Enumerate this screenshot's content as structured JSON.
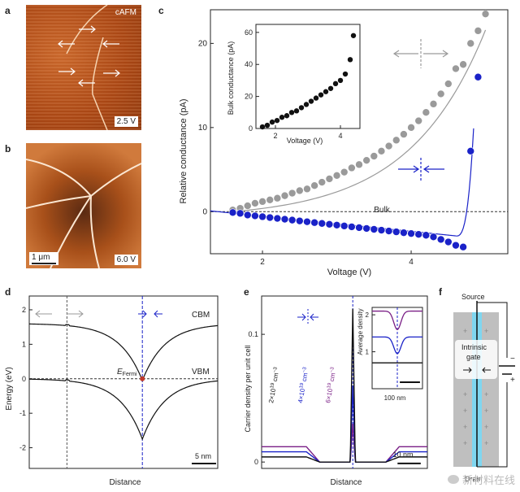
{
  "panels": {
    "a": {
      "label": "a",
      "mode": "cAFM",
      "bias": "2.5 V"
    },
    "b": {
      "label": "b",
      "scale": "1 μm",
      "bias": "6.0 V"
    },
    "c": {
      "label": "c",
      "inset": {
        "xlabel": "Voltage (V)",
        "ylabel": "Bulk conductance (pA)"
      },
      "main": {
        "xlabel": "Voltage (V)",
        "ylabel": "Relative conductance (pA)",
        "bulk_label": "Bulk"
      }
    },
    "d": {
      "label": "d",
      "xlabel": "Distance",
      "ylabel": "Energy (eV)",
      "cbm": "CBM",
      "vbm": "VBM",
      "efermi": "E",
      "efermi_sub": "Fermi",
      "scalebar": "5 nm"
    },
    "e": {
      "label": "e",
      "xlabel": "Distance",
      "ylabel": "Carrier density per unit cell",
      "inset_ylabel": "Average density",
      "inset_scale": "100 nm",
      "scalebar": "10 nm",
      "conc1": "2×10",
      "conc2": "4×10",
      "conc3": "6×10",
      "conc_exp": "19",
      "conc_unit": "cm",
      "conc_unit_exp": "−3"
    },
    "f": {
      "label": "f",
      "source": "Source",
      "drain": "Drain",
      "gate1": "Intrinsic",
      "gate2": "gate",
      "minus": "−",
      "plus": "+"
    }
  },
  "colors": {
    "grey": "#9a9a9a",
    "blue": "#1a22c8",
    "black": "#111111",
    "purple": "#7a1f86",
    "afm": "#b8511d"
  },
  "watermark": "新材料在线",
  "chart_data": [
    {
      "type": "scatter",
      "title": "",
      "xlabel": "Voltage (V)",
      "ylabel": "Relative conductance (pA)",
      "xlim": [
        1.3,
        5.3
      ],
      "ylim": [
        -5,
        24
      ],
      "xticks": [
        2,
        4
      ],
      "yticks": [
        0,
        10,
        20
      ],
      "series": [
        {
          "color": "#9a9a9a",
          "x": [
            1.6,
            1.7,
            1.8,
            1.9,
            2.0,
            2.1,
            2.2,
            2.3,
            2.4,
            2.5,
            2.6,
            2.7,
            2.8,
            2.9,
            3.0,
            3.1,
            3.2,
            3.3,
            3.4,
            3.5,
            3.6,
            3.7,
            3.8,
            3.9,
            4.0,
            4.1,
            4.2,
            4.3,
            4.4,
            4.5,
            4.6,
            4.7,
            4.8,
            4.9,
            5.0
          ],
          "y": [
            0.2,
            0.4,
            0.7,
            1.0,
            1.2,
            1.4,
            1.6,
            1.9,
            2.2,
            2.5,
            2.7,
            3.1,
            3.5,
            3.9,
            4.3,
            4.7,
            5.2,
            5.6,
            6.1,
            6.6,
            7.2,
            7.8,
            8.5,
            9.2,
            10.0,
            10.8,
            11.8,
            12.8,
            14.0,
            15.2,
            17.0,
            17.5,
            20.0,
            21.5,
            23.5
          ]
        },
        {
          "color": "#1a22c8",
          "x": [
            1.6,
            1.7,
            1.8,
            1.9,
            2.0,
            2.1,
            2.2,
            2.3,
            2.4,
            2.5,
            2.6,
            2.7,
            2.8,
            2.9,
            3.0,
            3.1,
            3.2,
            3.3,
            3.4,
            3.5,
            3.6,
            3.7,
            3.8,
            3.9,
            4.0,
            4.1,
            4.2,
            4.3,
            4.4,
            4.5,
            4.6,
            4.7,
            4.8,
            4.9
          ],
          "y": [
            -0.1,
            -0.2,
            -0.4,
            -0.5,
            -0.6,
            -0.7,
            -0.8,
            -0.9,
            -1.0,
            -1.1,
            -1.2,
            -1.3,
            -1.4,
            -1.5,
            -1.6,
            -1.7,
            -1.8,
            -1.9,
            -2.0,
            -2.1,
            -2.2,
            -2.3,
            -2.4,
            -2.5,
            -2.6,
            -2.7,
            -2.8,
            -3.0,
            -3.3,
            -3.6,
            -4.0,
            -4.2,
            7.2,
            16.0
          ]
        }
      ],
      "reference_line": {
        "y": 0,
        "label": "Bulk"
      }
    },
    {
      "type": "scatter",
      "title": "",
      "xlabel": "Voltage (V)",
      "ylabel": "Bulk conductance (pA)",
      "xlim": [
        1.4,
        4.6
      ],
      "ylim": [
        0,
        65
      ],
      "xticks": [
        2,
        4
      ],
      "yticks": [
        0,
        20,
        40,
        60
      ],
      "series": [
        {
          "color": "#111111",
          "x": [
            1.6,
            1.75,
            1.9,
            2.05,
            2.2,
            2.35,
            2.5,
            2.65,
            2.8,
            2.95,
            3.1,
            3.25,
            3.4,
            3.55,
            3.7,
            3.85,
            4.0,
            4.15,
            4.3,
            4.4
          ],
          "y": [
            1,
            2,
            4,
            5,
            7,
            8,
            10,
            11,
            13,
            15,
            17,
            19,
            21,
            23,
            25,
            28,
            30,
            34,
            43,
            58
          ]
        }
      ]
    },
    {
      "type": "line",
      "title": "",
      "xlabel": "Distance",
      "ylabel": "Energy (eV)",
      "ylim": [
        -2.6,
        2.4
      ],
      "yticks": [
        2,
        1,
        0,
        -1,
        -2
      ],
      "series": [
        {
          "name": "CBM",
          "color": "#111111",
          "x": [
            0,
            0.1,
            0.2,
            0.3,
            0.4,
            0.45,
            0.5,
            0.55,
            0.6,
            0.7,
            0.8,
            0.9,
            1.0
          ],
          "y": [
            1.6,
            1.6,
            1.6,
            1.58,
            1.2,
            0.7,
            -0.1,
            0.7,
            1.2,
            1.58,
            1.6,
            1.6,
            1.6
          ]
        },
        {
          "name": "VBM",
          "color": "#111111",
          "x": [
            0,
            0.1,
            0.2,
            0.3,
            0.4,
            0.45,
            0.5,
            0.55,
            0.6,
            0.7,
            0.8,
            0.9,
            1.0
          ],
          "y": [
            0,
            0,
            0,
            -0.02,
            -0.4,
            -0.9,
            -1.75,
            -0.9,
            -0.4,
            -0.02,
            0,
            0,
            0
          ]
        }
      ],
      "reference_line": {
        "y": 0,
        "label": "E Fermi"
      }
    },
    {
      "type": "line",
      "title": "",
      "xlabel": "Distance",
      "ylabel": "Carrier density per unit cell",
      "ylim": [
        -0.005,
        0.13
      ],
      "yticks": [
        0,
        0.1
      ],
      "series": [
        {
          "color": "#111111",
          "plateau": 0.004,
          "peak": 0.12
        },
        {
          "color": "#1a22c8",
          "plateau": 0.008,
          "peak": 0.06
        },
        {
          "color": "#7a1f86",
          "plateau": 0.012,
          "peak": 0.03
        }
      ]
    },
    {
      "type": "line",
      "title": "",
      "xlabel": "",
      "ylabel": "Average density",
      "ylim": [
        0,
        2.2
      ],
      "yticks": [
        1,
        2
      ],
      "series": [
        {
          "color": "#7a1f86",
          "plateau": 2.1,
          "dip": 1.6
        },
        {
          "color": "#1a22c8",
          "plateau": 1.4,
          "dip": 0.95
        },
        {
          "color": "#111111",
          "plateau": 0.7,
          "dip": 0.7
        }
      ]
    }
  ]
}
